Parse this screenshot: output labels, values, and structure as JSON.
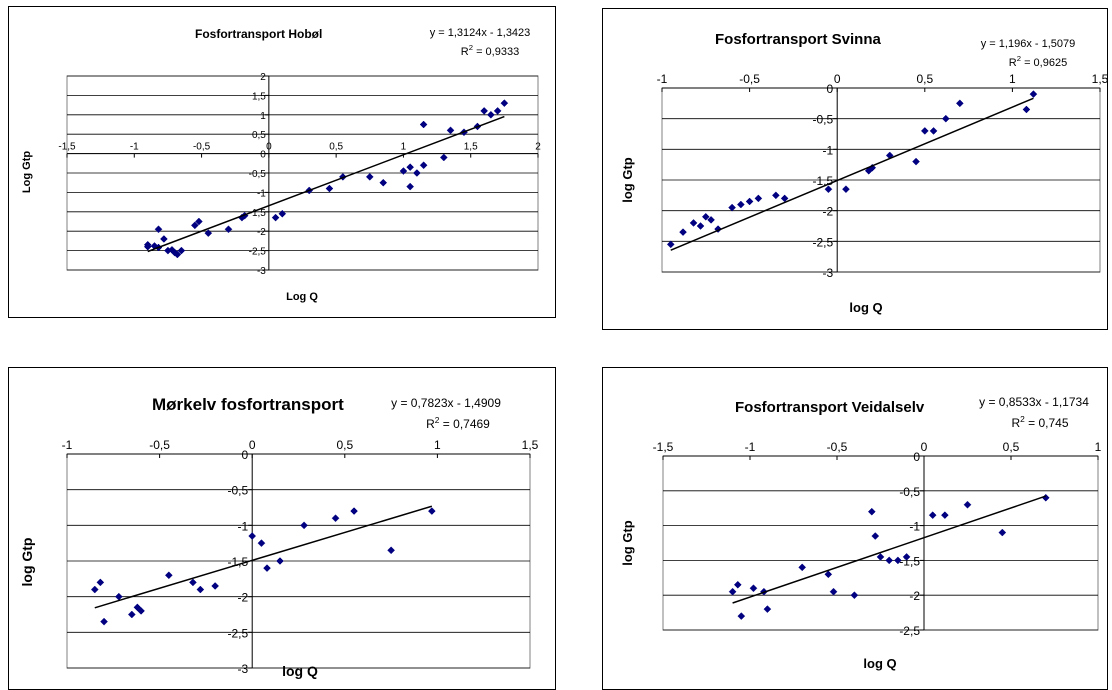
{
  "chart_data": [
    {
      "type": "scatter",
      "title": "Fosfortransport Hobøl",
      "xlabel": "Log Q",
      "ylabel": "Log Gtp",
      "equation": "y = 1,3124x - 1,3423",
      "r2_label": "R",
      "r2_value": " = 0,9333",
      "xlim": [
        -1.5,
        2
      ],
      "ylim": [
        -3,
        2
      ],
      "x_ticks": [
        -1.5,
        -1,
        -0.5,
        0,
        0.5,
        1,
        1.5,
        2
      ],
      "x_tick_labels": [
        "-1,5",
        "-1",
        "-0,5",
        "0",
        "0,5",
        "1",
        "1,5",
        "2"
      ],
      "y_ticks": [
        2,
        1.5,
        1,
        0.5,
        0,
        -0.5,
        -1,
        -1.5,
        -2,
        -2.5,
        -3
      ],
      "y_tick_labels": [
        "2",
        "1,5",
        "1",
        "0,5",
        "0",
        "-0,5",
        "-1",
        "-1,5",
        "-2",
        "-2,5",
        "-3"
      ],
      "grid": "horizontal",
      "trendline": {
        "slope": 1.3124,
        "intercept": -1.3423,
        "x_range": [
          -0.9,
          1.75
        ]
      },
      "series": [
        {
          "x": [
            -0.9,
            -0.85,
            -0.82,
            -0.78,
            -0.75,
            -0.72,
            -0.7,
            -0.68,
            -0.65,
            -0.9,
            -0.82,
            -0.55,
            -0.52,
            -0.45,
            -0.3,
            -0.2,
            -0.18,
            0.05,
            0.1,
            0.3,
            0.45,
            0.55,
            0.75,
            0.85,
            1.0,
            1.05,
            1.05,
            1.1,
            1.15,
            1.3,
            1.35,
            1.45,
            1.6,
            1.65,
            1.7,
            1.75,
            1.55,
            1.15
          ],
          "y": [
            -2.35,
            -2.38,
            -2.42,
            -2.2,
            -2.5,
            -2.48,
            -2.55,
            -2.6,
            -2.5,
            -2.4,
            -1.95,
            -1.85,
            -1.75,
            -2.05,
            -1.95,
            -1.65,
            -1.6,
            -1.65,
            -1.55,
            -0.95,
            -0.9,
            -0.6,
            -0.6,
            -0.75,
            -0.45,
            -0.85,
            -0.35,
            -0.5,
            -0.3,
            -0.1,
            0.6,
            0.55,
            1.1,
            1.0,
            1.1,
            1.3,
            0.7,
            0.75
          ]
        }
      ]
    },
    {
      "type": "scatter",
      "title": "Fosfortransport Svinna",
      "xlabel": "log Q",
      "ylabel": "log Gtp",
      "equation": "y = 1,196x - 1,5079",
      "r2_label": "R",
      "r2_value": " = 0,9625",
      "xlim": [
        -1,
        1.5
      ],
      "ylim": [
        -3,
        0
      ],
      "x_ticks": [
        -1,
        -0.5,
        0,
        0.5,
        1,
        1.5
      ],
      "x_tick_labels": [
        "-1",
        "-0,5",
        "0",
        "0,5",
        "1",
        "1,5"
      ],
      "y_ticks": [
        0,
        -0.5,
        -1,
        -1.5,
        -2,
        -2.5,
        -3
      ],
      "y_tick_labels": [
        "0",
        "-0,5",
        "-1",
        "-1,5",
        "-2",
        "-2,5",
        "-3"
      ],
      "grid": "horizontal",
      "trendline": {
        "slope": 1.196,
        "intercept": -1.5079,
        "x_range": [
          -0.95,
          1.12
        ]
      },
      "series": [
        {
          "x": [
            -0.95,
            -0.88,
            -0.82,
            -0.78,
            -0.75,
            -0.72,
            -0.68,
            -0.6,
            -0.55,
            -0.5,
            -0.45,
            -0.35,
            -0.3,
            -0.05,
            0.05,
            0.18,
            0.2,
            0.3,
            0.45,
            0.5,
            0.55,
            0.62,
            0.7,
            1.08,
            1.12
          ],
          "y": [
            -2.55,
            -2.35,
            -2.2,
            -2.25,
            -2.1,
            -2.15,
            -2.3,
            -1.95,
            -1.9,
            -1.85,
            -1.8,
            -1.75,
            -1.8,
            -1.65,
            -1.65,
            -1.35,
            -1.3,
            -1.1,
            -1.2,
            -0.7,
            -0.7,
            -0.5,
            -0.25,
            -0.35,
            -0.1
          ]
        }
      ]
    },
    {
      "type": "scatter",
      "title": "Mørkelv fosfortransport",
      "xlabel": "log Q",
      "ylabel": "log Gtp",
      "equation": "y = 0,7823x - 1,4909",
      "r2_label": "R",
      "r2_value": " = 0,7469",
      "xlim": [
        -1,
        1.5
      ],
      "ylim": [
        -3,
        0
      ],
      "x_ticks": [
        -1,
        -0.5,
        0,
        0.5,
        1,
        1.5
      ],
      "x_tick_labels": [
        "-1",
        "-0,5",
        "0",
        "0,5",
        "1",
        "1,5"
      ],
      "y_ticks": [
        0,
        -0.5,
        -1,
        -1.5,
        -2,
        -2.5,
        -3
      ],
      "y_tick_labels": [
        "0",
        "-0,5",
        "-1",
        "-1,5",
        "-2",
        "-2,5",
        "-3"
      ],
      "grid": "horizontal",
      "trendline": {
        "slope": 0.7823,
        "intercept": -1.4909,
        "x_range": [
          -0.85,
          0.97
        ]
      },
      "series": [
        {
          "x": [
            -0.85,
            -0.82,
            -0.8,
            -0.72,
            -0.65,
            -0.62,
            -0.6,
            -0.45,
            -0.32,
            -0.28,
            -0.2,
            0.0,
            0.05,
            0.08,
            0.15,
            0.28,
            0.45,
            0.55,
            0.75,
            0.97
          ],
          "y": [
            -1.9,
            -1.8,
            -2.35,
            -2.0,
            -2.25,
            -2.15,
            -2.2,
            -1.7,
            -1.8,
            -1.9,
            -1.85,
            -1.15,
            -1.25,
            -1.6,
            -1.5,
            -1.0,
            -0.9,
            -0.8,
            -1.35,
            -0.8
          ]
        }
      ]
    },
    {
      "type": "scatter",
      "title": "Fosfortransport Veidalselv",
      "xlabel": "log Q",
      "ylabel": "log Gtp",
      "equation": "y = 0,8533x - 1,1734",
      "r2_label": "R",
      "r2_value": " = 0,745",
      "xlim": [
        -1.5,
        1
      ],
      "ylim": [
        -2.5,
        0
      ],
      "x_ticks": [
        -1.5,
        -1,
        -0.5,
        0,
        0.5,
        1
      ],
      "x_tick_labels": [
        "-1,5",
        "-1",
        "-0,5",
        "0",
        "0,5",
        "1"
      ],
      "y_ticks": [
        0,
        -0.5,
        -1,
        -1.5,
        -2,
        -2.5
      ],
      "y_tick_labels": [
        "0",
        "-0,5",
        "-1",
        "-1,5",
        "-2",
        "-2,5"
      ],
      "grid": "horizontal",
      "trendline": {
        "slope": 0.8533,
        "intercept": -1.1734,
        "x_range": [
          -1.1,
          0.7
        ]
      },
      "series": [
        {
          "x": [
            -1.1,
            -1.07,
            -1.05,
            -0.98,
            -0.92,
            -0.9,
            -0.7,
            -0.55,
            -0.52,
            -0.4,
            -0.3,
            -0.28,
            -0.25,
            -0.2,
            -0.15,
            -0.1,
            0.05,
            0.12,
            0.25,
            0.45,
            0.7
          ],
          "y": [
            -1.95,
            -1.85,
            -2.3,
            -1.9,
            -1.95,
            -2.2,
            -1.6,
            -1.7,
            -1.95,
            -2.0,
            -0.8,
            -1.15,
            -1.45,
            -1.5,
            -1.5,
            -1.45,
            -0.85,
            -0.85,
            -0.7,
            -1.1,
            -0.6
          ]
        }
      ]
    }
  ]
}
